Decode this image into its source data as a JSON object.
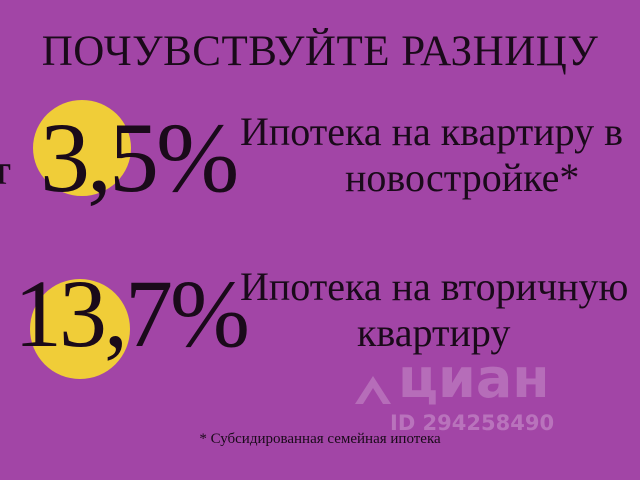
{
  "title": "ПОЧУВСТВУЙТЕ РАЗНИЦУ",
  "offers": [
    {
      "prefix": "от",
      "rate": "3,5%",
      "line1": "Ипотека на квартиру в",
      "line2": "новостройке*"
    },
    {
      "rate": "13,7%",
      "line1": "Ипотека на вторичную",
      "line2": "квартиру"
    }
  ],
  "footnote": "* Субсидированная семейная ипотека",
  "watermark": {
    "logo": "циан",
    "id": "ID 294258490",
    "icon": "cian-roof-icon"
  },
  "colors": {
    "background": "#a245a6",
    "highlight": "#f0cd38",
    "text": "#1a0a1a"
  }
}
